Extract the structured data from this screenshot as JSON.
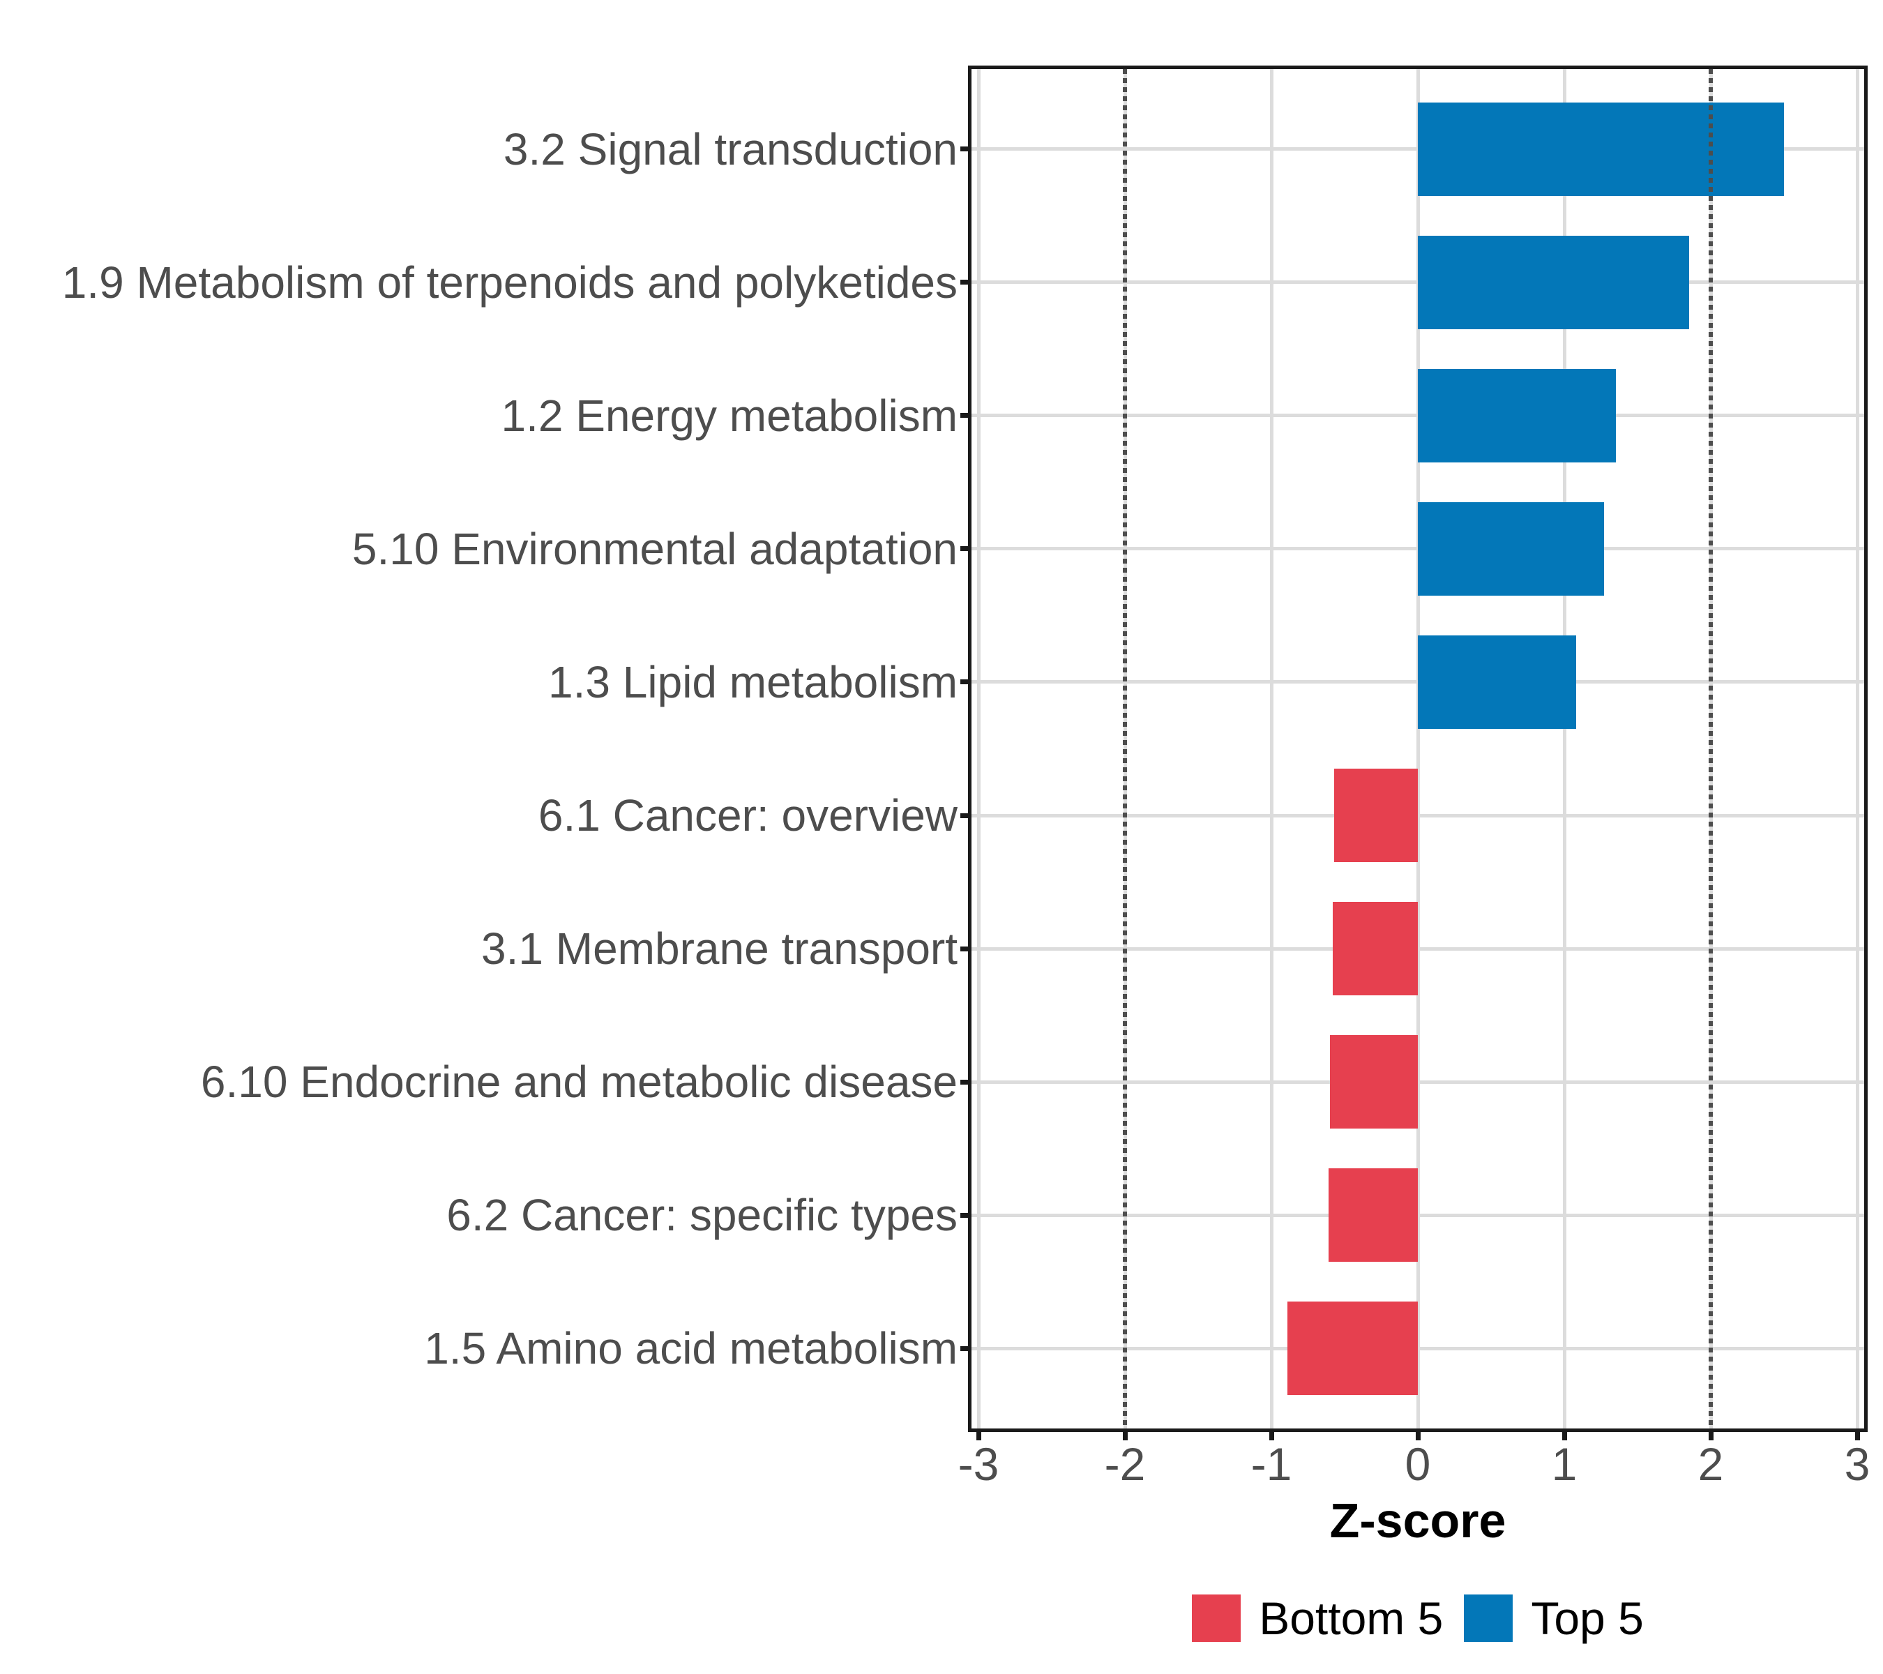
{
  "chart_data": {
    "type": "bar",
    "orientation": "horizontal",
    "title": "",
    "xlabel": "Z-score",
    "categories": [
      "3.2 Signal transduction",
      "1.9 Metabolism of terpenoids and polyketides",
      "1.2 Energy metabolism",
      "5.10 Environmental adaptation",
      "1.3 Lipid metabolism",
      "6.1 Cancer: overview",
      "3.1 Membrane transport",
      "6.10 Endocrine and metabolic disease",
      "6.2 Cancer: specific types",
      "1.5 Amino acid metabolism"
    ],
    "values": [
      2.5,
      1.85,
      1.35,
      1.27,
      1.08,
      -0.57,
      -0.58,
      -0.6,
      -0.61,
      -0.89
    ],
    "groups": [
      "Top 5",
      "Top 5",
      "Top 5",
      "Top 5",
      "Top 5",
      "Bottom 5",
      "Bottom 5",
      "Bottom 5",
      "Bottom 5",
      "Bottom 5"
    ],
    "category_order": "top-to-bottom",
    "x_tick_labels": [
      "-3",
      "-2",
      "-1",
      "0",
      "1",
      "2",
      "3"
    ],
    "x_tick_values": [
      -3,
      -2,
      -1,
      0,
      1,
      2,
      3
    ],
    "xlim": [
      -3.05,
      3.05
    ],
    "bar_width_fraction": 0.7,
    "reference_lines": {
      "x": [
        -2,
        2
      ],
      "style": "dotted"
    },
    "grid": "major only",
    "legend": {
      "position": "bottom",
      "entries": [
        {
          "label": "Bottom 5",
          "color": "#E6404F"
        },
        {
          "label": "Top 5",
          "color": "#0377B8"
        }
      ]
    },
    "colors": {
      "Top 5": "#0377B8",
      "Bottom 5": "#E6404F"
    }
  },
  "style": {
    "axis_text_color": "#4D4D4D",
    "axis_title_color": "#000000",
    "legend_text_color": "#000000",
    "gridline_color": "#DCDCDC",
    "reference_line_color": "#4D4D4D",
    "panel_border_color": "#1A1A1A",
    "tick_color": "#1A1A1A",
    "background_color": "#FFFFFF"
  }
}
